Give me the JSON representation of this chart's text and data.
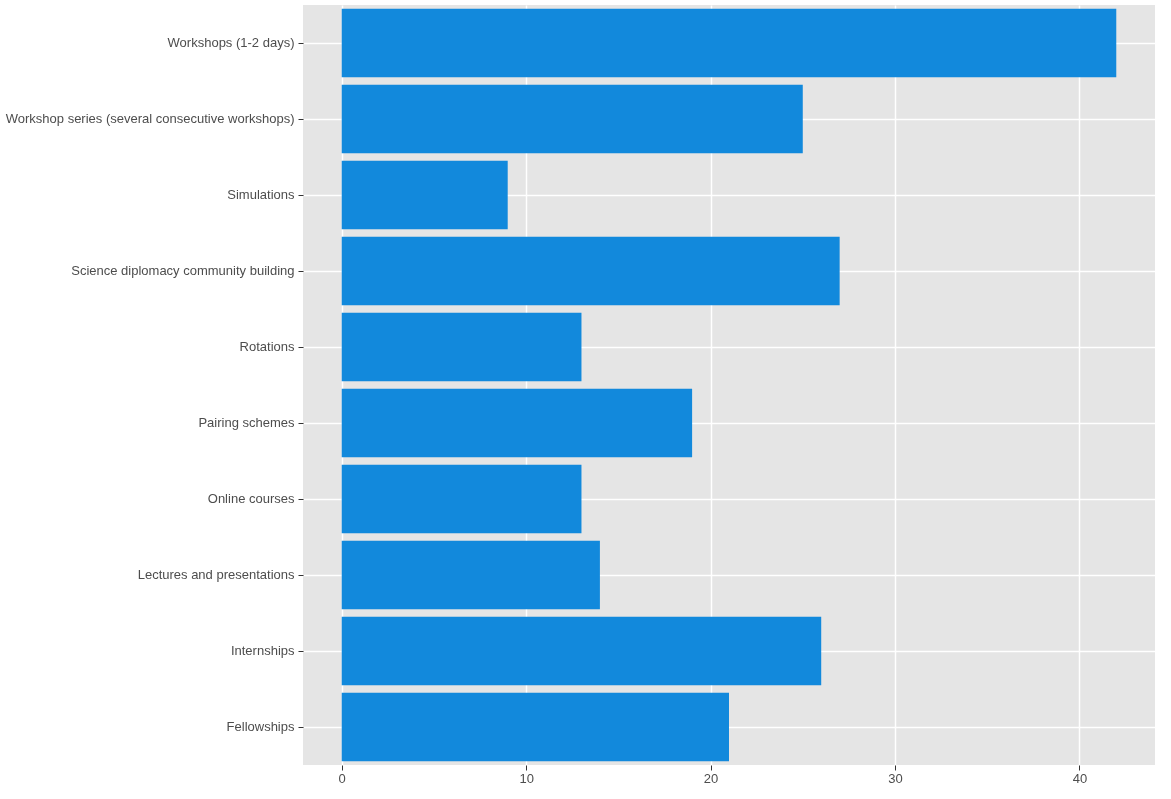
{
  "chart_data": {
    "type": "bar",
    "orientation": "horizontal",
    "categories": [
      "Workshops (1-2 days)",
      "Workshop series (several consecutive workshops)",
      "Simulations",
      "Science diplomacy community building",
      "Rotations",
      "Pairing schemes",
      "Online courses",
      "Lectures and presentations",
      "Internships",
      "Fellowships"
    ],
    "values": [
      42,
      25,
      9,
      27,
      13,
      19,
      13,
      14,
      26,
      21
    ],
    "color": "#1289dc",
    "xlim": [
      -2.1,
      44.1
    ],
    "xticks": [
      0,
      10,
      20,
      30,
      40
    ],
    "grid": true
  }
}
